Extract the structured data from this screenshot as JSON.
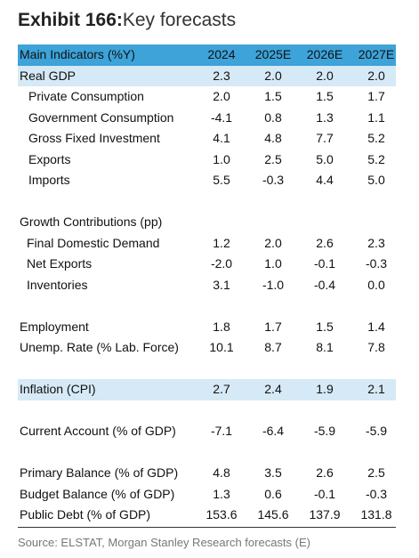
{
  "title": {
    "bold": "Exhibit 166:",
    "rest": "Key forecasts"
  },
  "header": {
    "label": "Main Indicators (%Y)",
    "years": [
      "2024",
      "2025E",
      "2026E",
      "2027E"
    ]
  },
  "rows": [
    {
      "label": "Real GDP",
      "values": [
        "2.3",
        "2.0",
        "2.0",
        "2.0"
      ],
      "indent": 0,
      "highlight": true
    },
    {
      "label": "Private Consumption",
      "values": [
        "2.0",
        "1.5",
        "1.5",
        "1.7"
      ],
      "indent": 2
    },
    {
      "label": "Government Consumption",
      "values": [
        "-4.1",
        "0.8",
        "1.3",
        "1.1"
      ],
      "indent": 2
    },
    {
      "label": "Gross Fixed Investment",
      "values": [
        "4.1",
        "4.8",
        "7.7",
        "5.2"
      ],
      "indent": 2
    },
    {
      "label": "Exports",
      "values": [
        "1.0",
        "2.5",
        "5.0",
        "5.2"
      ],
      "indent": 2
    },
    {
      "label": "Imports",
      "values": [
        "5.5",
        "-0.3",
        "4.4",
        "5.0"
      ],
      "indent": 2
    },
    {
      "gap": true
    },
    {
      "label": "Growth Contributions (pp)",
      "values": [
        "",
        "",
        "",
        ""
      ],
      "indent": 0
    },
    {
      "label": "Final Domestic Demand",
      "values": [
        "1.2",
        "2.0",
        "2.6",
        "2.3"
      ],
      "indent": 1
    },
    {
      "label": "Net Exports",
      "values": [
        "-2.0",
        "1.0",
        "-0.1",
        "-0.3"
      ],
      "indent": 1
    },
    {
      "label": "Inventories",
      "values": [
        "3.1",
        "-1.0",
        "-0.4",
        "0.0"
      ],
      "indent": 1
    },
    {
      "gap": true
    },
    {
      "label": "Employment",
      "values": [
        "1.8",
        "1.7",
        "1.5",
        "1.4"
      ],
      "indent": 0
    },
    {
      "label": "Unemp. Rate (% Lab. Force)",
      "values": [
        "10.1",
        "8.7",
        "8.1",
        "7.8"
      ],
      "indent": 0
    },
    {
      "gap": true
    },
    {
      "label": "Inflation (CPI)",
      "values": [
        "2.7",
        "2.4",
        "1.9",
        "2.1"
      ],
      "indent": 0,
      "highlight": true
    },
    {
      "gap": true
    },
    {
      "label": "Current Account (% of GDP)",
      "values": [
        "-7.1",
        "-6.4",
        "-5.9",
        "-5.9"
      ],
      "indent": 0
    },
    {
      "gap": true
    },
    {
      "label": "Primary Balance (% of GDP)",
      "values": [
        "4.8",
        "3.5",
        "2.6",
        "2.5"
      ],
      "indent": 0
    },
    {
      "label": "Budget Balance (% of GDP)",
      "values": [
        "1.3",
        "0.6",
        "-0.1",
        "-0.3"
      ],
      "indent": 0
    },
    {
      "label": "Public Debt (% of GDP)",
      "values": [
        "153.6",
        "145.6",
        "137.9",
        "131.8"
      ],
      "indent": 0
    }
  ],
  "source": "Source: ELSTAT, Morgan Stanley Research forecasts (E)"
}
